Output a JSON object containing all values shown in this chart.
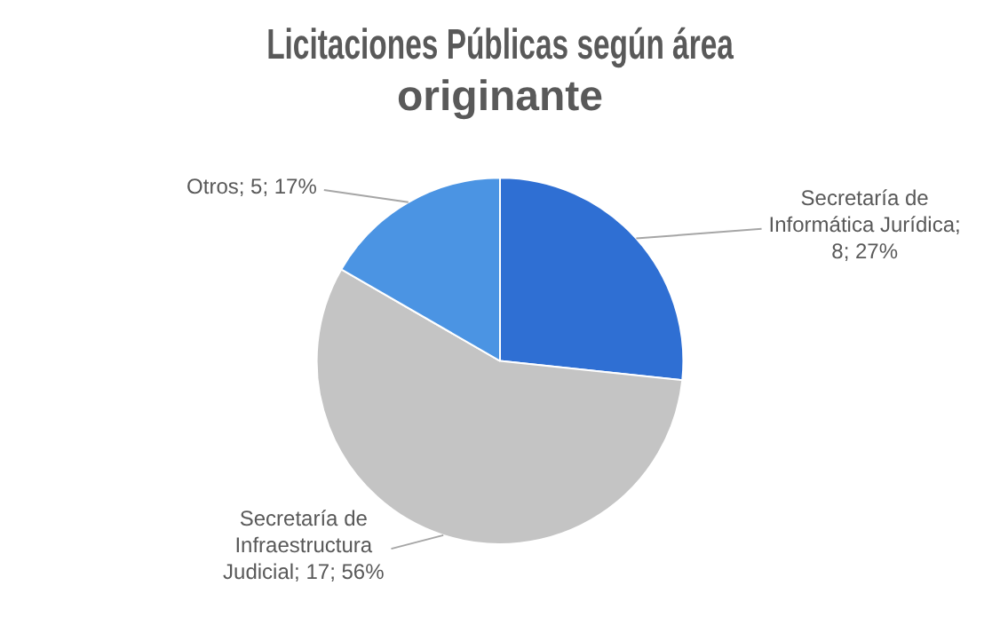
{
  "chart_data": {
    "type": "pie",
    "title": "Licitaciones Públicas según área originante",
    "categories": [
      null,
      null,
      null
    ],
    "values": [
      8,
      17,
      5
    ],
    "value_labels": [
      "Secretaría de Informática Jurídica; 8; 27%",
      "Secretaría de Infraestructura Judicial; 17; 56%",
      "Otros; 5; 17%"
    ],
    "colors": [
      "#2f6fd3",
      "#c4c4c4",
      "#4b94e3"
    ],
    "legend": false
  }
}
